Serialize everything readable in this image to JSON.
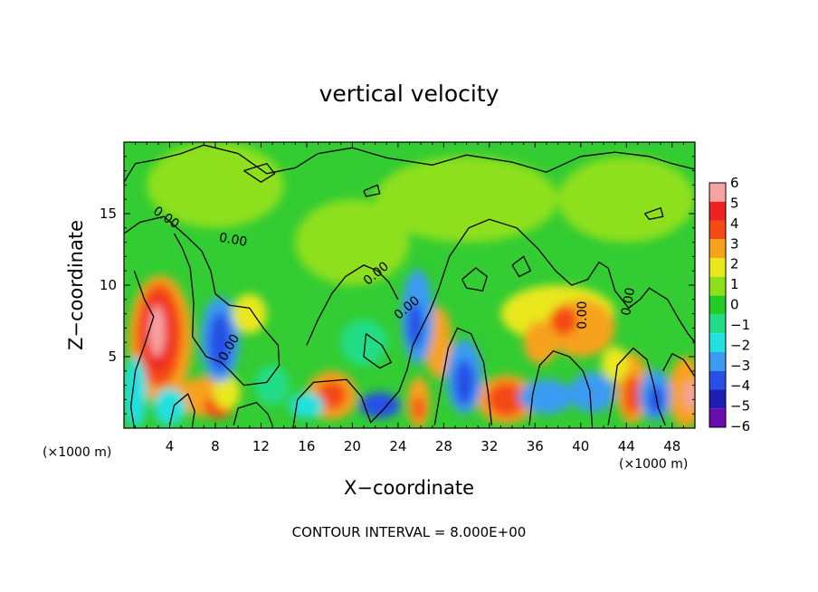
{
  "chart_data": {
    "type": "heatmap",
    "title": "vertical velocity",
    "xlabel": "X−coordinate",
    "ylabel": "Z−coordinate",
    "x_unit_left": "(×1000 m)",
    "x_unit_right": "(×1000 m)",
    "xlim": [
      0,
      50
    ],
    "ylim": [
      0,
      20
    ],
    "x_ticks": [
      4,
      8,
      12,
      16,
      20,
      24,
      28,
      32,
      36,
      40,
      44,
      48
    ],
    "y_ticks": [
      5,
      10,
      15
    ],
    "colorbar": {
      "levels": [
        6,
        5,
        4,
        3,
        2,
        1,
        0,
        -1,
        -2,
        -3,
        -4,
        -5,
        -6
      ],
      "colors": [
        "#f7a3a3",
        "#ee2222",
        "#f44a14",
        "#f7a21a",
        "#e8e81a",
        "#8ee01a",
        "#22cc22",
        "#22dd88",
        "#20e0e0",
        "#3b9bf2",
        "#2850e6",
        "#1e1eb4",
        "#6a0dad"
      ]
    },
    "contour_labels": [
      {
        "text": "0.00",
        "x": 3.5,
        "y": 14.5,
        "angle": 35
      },
      {
        "text": "0.00",
        "x": 9.5,
        "y": 12.9,
        "angle": 10
      },
      {
        "text": "0.00",
        "x": 9.5,
        "y": 5.5,
        "angle": -60
      },
      {
        "text": "0.00",
        "x": 22.3,
        "y": 10.6,
        "angle": -40
      },
      {
        "text": "0.00",
        "x": 25.0,
        "y": 8.2,
        "angle": -40
      },
      {
        "text": "0.00",
        "x": 40.5,
        "y": 7.9,
        "angle": -90
      },
      {
        "text": "0.00",
        "x": 44.5,
        "y": 8.8,
        "angle": -80
      }
    ],
    "footer": "CONTOUR INTERVAL = 8.000E+00"
  }
}
